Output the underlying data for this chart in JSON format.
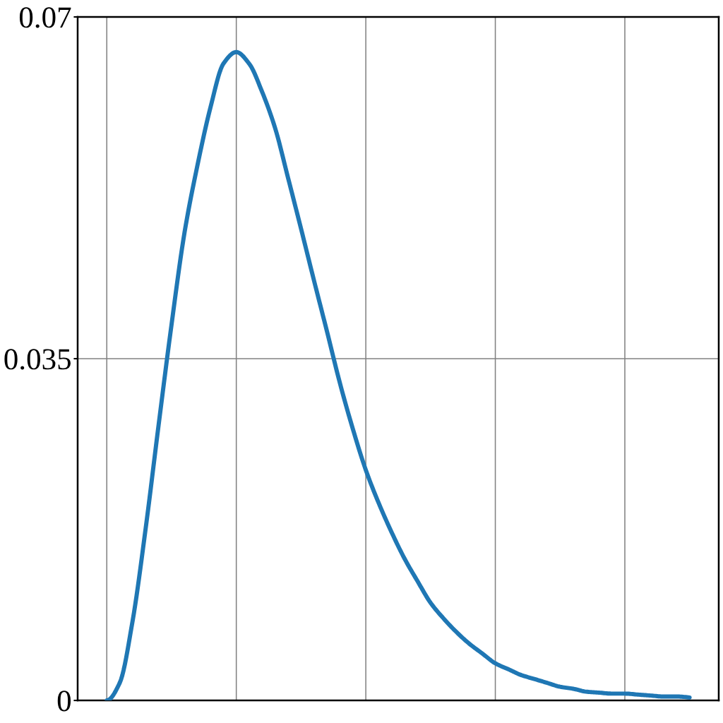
{
  "chart_data": {
    "type": "line",
    "categories": [
      null,
      null,
      null,
      null,
      null,
      null,
      null,
      null,
      null,
      null,
      null,
      null,
      null,
      null,
      null,
      null,
      null,
      null,
      null,
      null,
      null,
      null,
      null,
      null,
      null,
      null,
      null,
      null,
      null,
      null,
      null,
      null,
      null,
      null,
      null,
      null,
      null,
      null,
      null,
      null,
      null,
      null,
      null,
      null,
      null,
      null
    ],
    "series": [
      {
        "color": "#1f77b4",
        "values": [
          0,
          0.0018,
          0.0082,
          0.0176,
          0.0282,
          0.0385,
          0.0479,
          0.0548,
          0.0607,
          0.0652,
          0.0664,
          0.0652,
          0.0623,
          0.0586,
          0.0535,
          0.0483,
          0.043,
          0.0378,
          0.0325,
          0.0278,
          0.0236,
          0.0202,
          0.0172,
          0.0145,
          0.0122,
          0.01,
          0.0084,
          0.007,
          0.0058,
          0.0048,
          0.0038,
          0.0032,
          0.0026,
          0.0022,
          0.0018,
          0.0014,
          0.0012,
          0.0009,
          0.0008,
          0.0007,
          0.0007,
          0.0006,
          0.0005,
          0.0004,
          0.0004,
          0.0003
        ]
      }
    ],
    "ylim": [
      0,
      0.07
    ],
    "yticks": [
      0,
      0.035,
      0.07
    ],
    "grid": true,
    "tick_labels": "y",
    "line_style": "solid",
    "marker": "none"
  }
}
